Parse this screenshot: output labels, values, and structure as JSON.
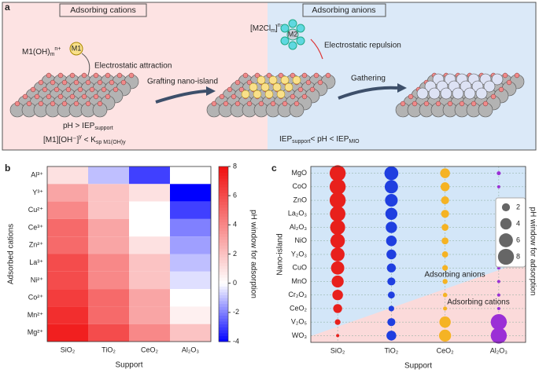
{
  "panel_a": {
    "label": "a",
    "left_header": "Adsorbing cations",
    "right_header": "Adsorbing anions",
    "cation_formula": [
      {
        "t": "M1(OH)"
      },
      {
        "t": "m",
        "s": "sub"
      },
      {
        "t": "n+",
        "s": "super"
      }
    ],
    "m1": "M1",
    "attraction": "Electrostatic attraction",
    "anion_formula": [
      {
        "t": "[M2Cl"
      },
      {
        "t": "m",
        "s": "sub"
      },
      {
        "t": "]"
      },
      {
        "t": "n−",
        "s": "super"
      }
    ],
    "m2": "M2",
    "repulsion": "Electrostatic repulsion",
    "grafting": "Grafting nano-island",
    "gathering": "Gathering",
    "condition_1": [
      {
        "t": "pH > IEP"
      },
      {
        "t": "support",
        "s": "sub"
      }
    ],
    "condition_2": [
      {
        "t": "[M1][OH⁻]"
      },
      {
        "t": "y",
        "s": "super"
      },
      {
        "t": " < K"
      },
      {
        "t": "sp M1(OH)y",
        "s": "sub"
      }
    ],
    "condition_3": [
      {
        "t": "IEP"
      },
      {
        "t": "support",
        "s": "sub"
      },
      {
        "t": "< pH < IEP"
      },
      {
        "t": "MIO",
        "s": "sub"
      }
    ]
  },
  "chart_data": [
    {
      "type": "heatmap",
      "panel_label": "b",
      "x_categories": [
        "SiO₂",
        "TiO₂",
        "CeO₂",
        "Al₂O₃"
      ],
      "y_categories": [
        "Al³⁺",
        "Y³⁺",
        "Cu²⁺",
        "Ce³⁺",
        "Zn²⁺",
        "La³⁺",
        "Ni²⁺",
        "Co²⁺",
        "Mn²⁺",
        "Mg²⁺"
      ],
      "values": [
        [
          1,
          -1,
          -3,
          0
        ],
        [
          3,
          2,
          1,
          -4
        ],
        [
          4,
          2,
          0,
          -3
        ],
        [
          5,
          3,
          0,
          -2
        ],
        [
          5,
          3,
          1,
          -1.5
        ],
        [
          6,
          4,
          2,
          -1
        ],
        [
          6,
          4,
          2,
          -0.5
        ],
        [
          6.5,
          5,
          3,
          0
        ],
        [
          7,
          5,
          3,
          0.5
        ],
        [
          7.5,
          6,
          4,
          2
        ]
      ],
      "x_label": "Support",
      "y_label": "Adsorbed cations",
      "colorbar_label": "pH window for adsorption",
      "clim": [
        -4,
        8
      ],
      "cticks": [
        -4,
        -2,
        0,
        2,
        4,
        6,
        8
      ],
      "colors": {
        "low": "#0000ff",
        "mid": "#ffffff",
        "high": "#f01010"
      }
    },
    {
      "type": "bubble",
      "panel_label": "c",
      "x_categories": [
        "SiO₂",
        "TiO₂",
        "CeO₂",
        "Al₂O₃"
      ],
      "y_categories": [
        "MgO",
        "CoO",
        "ZnO",
        "La₂O₃",
        "Al₂O₃",
        "NiO",
        "Y₂O₃",
        "CuO",
        "MnO",
        "Cr₂O₃",
        "CeO₂",
        "V₂O₅",
        "WO₃"
      ],
      "colors": [
        "#e8201c",
        "#1f3fe0",
        "#f5b324",
        "#9b2fd6"
      ],
      "values": [
        [
          8,
          6,
          3,
          0.5
        ],
        [
          8,
          5.5,
          2.5,
          0.3
        ],
        [
          8,
          5,
          2,
          0.3
        ],
        [
          7.5,
          4.5,
          2,
          0.3
        ],
        [
          7,
          4,
          1.5,
          0.3
        ],
        [
          6.5,
          3.5,
          1.5,
          0.3
        ],
        [
          6,
          3,
          1.2,
          0.3
        ],
        [
          5.5,
          2.5,
          1,
          0.3
        ],
        [
          4.5,
          2,
          0.8,
          0.3
        ],
        [
          3.5,
          1.5,
          0.6,
          0.3
        ],
        [
          2.5,
          1,
          0.5,
          0.3
        ],
        [
          1,
          2,
          4,
          8
        ],
        [
          0.3,
          3,
          4.5,
          8
        ]
      ],
      "x_label": "Support",
      "y_label": "Nano-island",
      "size_label": "pH window for adsorption",
      "size_legend": [
        2,
        4,
        6,
        8
      ],
      "region_labels": [
        "Adsorbing anions",
        "Adsorbing cations"
      ],
      "region_colors": [
        "#d3e6f8",
        "#fbdada"
      ]
    }
  ]
}
